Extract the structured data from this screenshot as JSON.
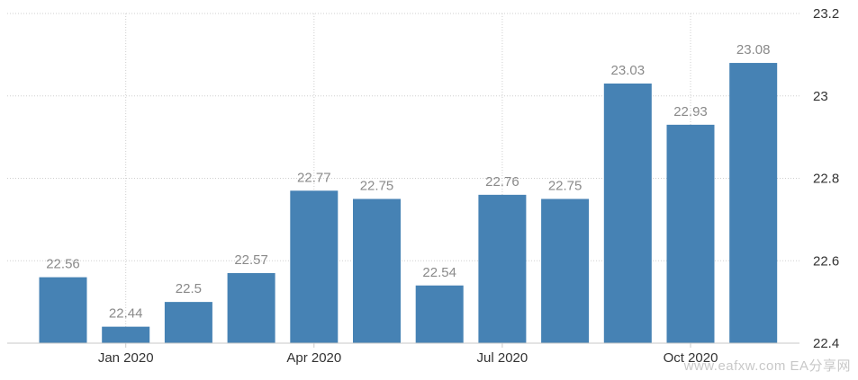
{
  "chart_data": {
    "type": "bar",
    "categories": [
      "Dec 2019",
      "Jan 2020",
      "Feb 2020",
      "Mar 2020",
      "Apr 2020",
      "May 2020",
      "Jun 2020",
      "Jul 2020",
      "Aug 2020",
      "Sep 2020",
      "Oct 2020",
      "Nov 2020"
    ],
    "values": [
      22.56,
      22.44,
      22.5,
      22.57,
      22.77,
      22.75,
      22.54,
      22.76,
      22.75,
      23.03,
      22.93,
      23.08
    ],
    "data_labels": [
      "22.56",
      "22.44",
      "22.5",
      "22.57",
      "22.77",
      "22.75",
      "22.54",
      "22.76",
      "22.75",
      "23.03",
      "22.93",
      "23.08"
    ],
    "ylim": [
      22.4,
      23.2
    ],
    "y_ticks": [
      "22.4",
      "22.6",
      "22.8",
      "23",
      "23.2"
    ],
    "x_ticks": [
      {
        "label": "Jan 2020",
        "category": "Jan 2020"
      },
      {
        "label": "Apr 2020",
        "category": "Apr 2020"
      },
      {
        "label": "Jul 2020",
        "category": "Jul 2020"
      },
      {
        "label": "Oct 2020",
        "category": "Oct 2020"
      }
    ],
    "y_axis_position": "right",
    "grid": true,
    "bar_color": "#4682b4"
  },
  "watermark": "www.eafxw.com  EA分享网"
}
